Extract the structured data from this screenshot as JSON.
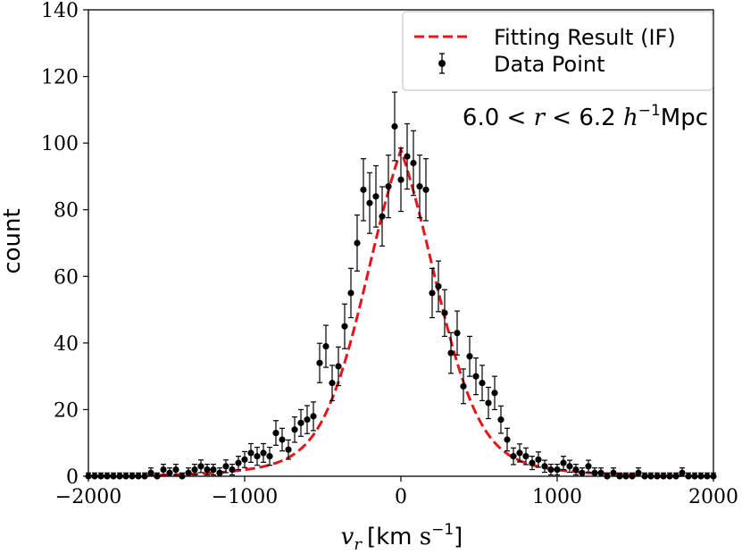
{
  "chart_data": {
    "type": "scatter",
    "title": "",
    "xlabel": "v_r [km s^-1]",
    "xlabel_parts": {
      "var": "v",
      "sub": "r",
      "unit_open": "[km ",
      "unit_s": "s",
      "unit_exp": "−1",
      "unit_close": "]"
    },
    "ylabel": "count",
    "xlim": [
      -2000,
      2000
    ],
    "ylim": [
      0,
      140
    ],
    "xticks": [
      -2000,
      -1000,
      0,
      1000,
      2000
    ],
    "xtick_labels": [
      "−2000",
      "−1000",
      "0",
      "1000",
      "2000"
    ],
    "yticks": [
      0,
      20,
      40,
      60,
      80,
      100,
      120,
      140
    ],
    "ytick_labels": [
      "0",
      "20",
      "40",
      "60",
      "80",
      "100",
      "120",
      "140"
    ],
    "annotation": "6.0 < r < 6.2 h^-1Mpc",
    "annotation_parts": {
      "a": "6.0 < ",
      "r": "r",
      "b": " < 6.2 ",
      "h": "h",
      "exp": "−1",
      "unit": "Mpc"
    },
    "legend": {
      "placement": "upper right",
      "entries": [
        "Fitting Result (IF)",
        "Data Point"
      ]
    },
    "series": [
      {
        "name": "Fitting Result (IF)",
        "kind": "line",
        "style": "dashed",
        "color": "#e8141a",
        "model": {
          "amplitude": 98,
          "center": 0,
          "sigma": 255,
          "shape": "gaussian-core-exponential-wings"
        }
      },
      {
        "name": "Data Point",
        "kind": "errorbar",
        "color": "#000000",
        "x": [
          -2000,
          -1960,
          -1920,
          -1880,
          -1840,
          -1800,
          -1760,
          -1720,
          -1680,
          -1640,
          -1600,
          -1560,
          -1520,
          -1480,
          -1440,
          -1400,
          -1360,
          -1320,
          -1280,
          -1240,
          -1200,
          -1160,
          -1120,
          -1080,
          -1040,
          -1000,
          -960,
          -920,
          -880,
          -840,
          -800,
          -760,
          -720,
          -680,
          -640,
          -600,
          -560,
          -520,
          -480,
          -440,
          -400,
          -360,
          -320,
          -280,
          -240,
          -200,
          -160,
          -120,
          -80,
          -40,
          0,
          40,
          80,
          120,
          160,
          200,
          240,
          280,
          320,
          360,
          400,
          440,
          480,
          520,
          560,
          600,
          640,
          680,
          720,
          760,
          800,
          840,
          880,
          920,
          960,
          1000,
          1040,
          1080,
          1120,
          1160,
          1200,
          1240,
          1280,
          1320,
          1360,
          1400,
          1440,
          1480,
          1520,
          1560,
          1600,
          1640,
          1680,
          1720,
          1760,
          1800,
          1840,
          1880,
          1920,
          1960,
          2000
        ],
        "y": [
          0,
          0,
          0,
          0,
          0,
          0,
          0,
          0,
          0,
          0,
          1,
          0,
          2,
          1,
          2,
          0,
          1,
          2,
          3,
          2,
          2,
          1,
          3,
          2,
          4,
          5,
          7,
          6,
          7,
          6,
          13,
          11,
          8,
          14,
          16,
          17,
          18,
          34,
          39,
          28,
          33,
          45,
          55,
          70,
          86,
          82,
          84,
          78,
          87,
          105,
          89,
          96,
          94,
          87,
          86,
          55,
          57,
          49,
          37,
          43,
          27,
          36,
          30,
          28,
          22,
          25,
          17,
          11,
          6,
          7,
          6,
          4,
          5,
          3,
          2,
          2,
          4,
          3,
          2,
          1,
          3,
          1,
          1,
          0,
          1,
          0,
          0,
          0,
          1,
          0,
          0,
          0,
          0,
          0,
          0,
          1,
          0,
          0,
          0,
          0,
          0
        ],
        "yerr": [
          1,
          1,
          1,
          1,
          1,
          1,
          1,
          1,
          1,
          1,
          1.5,
          1,
          1.6,
          1.5,
          1.6,
          1,
          1.5,
          1.6,
          1.9,
          1.6,
          1.6,
          1.5,
          1.9,
          1.6,
          2,
          2.4,
          2.8,
          2.7,
          2.8,
          2.7,
          3.7,
          3.4,
          2.9,
          3.8,
          4,
          4.2,
          4.3,
          5.9,
          6.3,
          5.3,
          5.8,
          6.7,
          7.4,
          8.4,
          9.3,
          9.1,
          9.2,
          8.9,
          9.4,
          10.3,
          9.5,
          9.8,
          9.7,
          9.4,
          9.3,
          7.4,
          7.6,
          7,
          6.1,
          6.6,
          5.2,
          6,
          5.5,
          5.3,
          4.7,
          5,
          4.1,
          3.4,
          2.5,
          2.7,
          2.5,
          2,
          2.3,
          1.8,
          1.6,
          1.6,
          2,
          1.8,
          1.6,
          1.5,
          1.8,
          1.5,
          1.5,
          1,
          1.5,
          1,
          1,
          1,
          1.5,
          1,
          1,
          1,
          1,
          1,
          1,
          1.5,
          1,
          1,
          1,
          1,
          1
        ]
      }
    ],
    "colors": {
      "fit": "#e8141a",
      "points": "#000000",
      "axes": "#000000"
    }
  }
}
